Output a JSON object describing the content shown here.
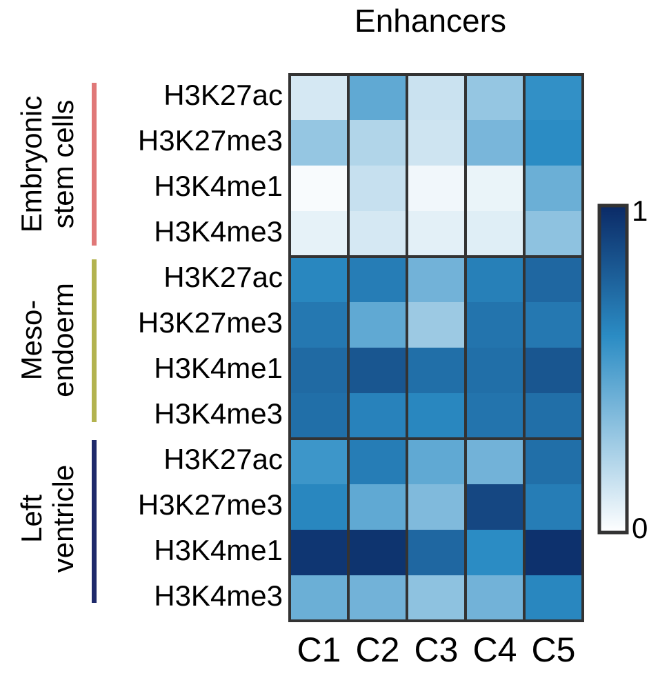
{
  "chart_data": {
    "type": "heatmap",
    "title": "Enhancers",
    "columns": [
      "C1",
      "C2",
      "C3",
      "C4",
      "C5"
    ],
    "groups": [
      {
        "label_lines": [
          "Embryonic",
          "stem cells"
        ],
        "color": "#e07878",
        "rows": [
          {
            "label": "H3K27ac",
            "values": [
              0.12,
              0.45,
              0.15,
              0.3,
              0.58
            ]
          },
          {
            "label": "H3K27me3",
            "values": [
              0.3,
              0.22,
              0.14,
              0.38,
              0.6
            ]
          },
          {
            "label": "H3K4me1",
            "values": [
              0.02,
              0.16,
              0.04,
              0.06,
              0.42
            ]
          },
          {
            "label": "H3K4me3",
            "values": [
              0.07,
              0.12,
              0.08,
              0.09,
              0.32
            ]
          }
        ]
      },
      {
        "label_lines": [
          "Meso-",
          "endoerm"
        ],
        "color": "#b3b34f",
        "rows": [
          {
            "label": "H3K27ac",
            "values": [
              0.62,
              0.66,
              0.4,
              0.65,
              0.75
            ]
          },
          {
            "label": "H3K27me3",
            "values": [
              0.68,
              0.45,
              0.28,
              0.7,
              0.68
            ]
          },
          {
            "label": "H3K4me1",
            "values": [
              0.74,
              0.82,
              0.72,
              0.72,
              0.82
            ]
          },
          {
            "label": "H3K4me3",
            "values": [
              0.72,
              0.64,
              0.62,
              0.7,
              0.72
            ]
          }
        ]
      },
      {
        "label_lines": [
          "Left",
          "ventricle"
        ],
        "color": "#1f2a6b",
        "rows": [
          {
            "label": "H3K27ac",
            "values": [
              0.55,
              0.66,
              0.45,
              0.4,
              0.72
            ]
          },
          {
            "label": "H3K27me3",
            "values": [
              0.62,
              0.45,
              0.36,
              0.88,
              0.66
            ]
          },
          {
            "label": "H3K4me1",
            "values": [
              0.95,
              0.96,
              0.75,
              0.6,
              0.97
            ]
          },
          {
            "label": "H3K4me3",
            "values": [
              0.42,
              0.4,
              0.32,
              0.4,
              0.62
            ]
          }
        ]
      }
    ],
    "colorbar": {
      "min": 0,
      "max": 1,
      "min_label": "0",
      "max_label": "1",
      "low_color": "#ffffff",
      "mid_color": "#2b8cc4",
      "high_color": "#0b2a66"
    },
    "grid": false,
    "legend_position": "right"
  }
}
